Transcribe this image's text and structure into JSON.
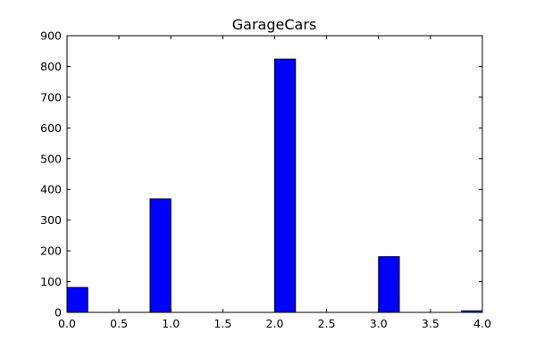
{
  "chart_data": {
    "type": "bar",
    "title": "GarageCars",
    "xlabel": "",
    "ylabel": "",
    "xlim": [
      0,
      4
    ],
    "ylim": [
      0,
      900
    ],
    "grid": false,
    "bar_color": "#0000ff",
    "bins": [
      {
        "x0": 0.0,
        "x1": 0.2,
        "value": 81
      },
      {
        "x0": 0.8,
        "x1": 1.0,
        "value": 369
      },
      {
        "x0": 2.0,
        "x1": 2.2,
        "value": 824
      },
      {
        "x0": 3.0,
        "x1": 3.2,
        "value": 181
      },
      {
        "x0": 3.8,
        "x1": 4.0,
        "value": 5
      }
    ],
    "xticks": [
      "0.0",
      "0.5",
      "1.0",
      "1.5",
      "2.0",
      "2.5",
      "3.0",
      "3.5",
      "4.0"
    ],
    "yticks": [
      "0",
      "100",
      "200",
      "300",
      "400",
      "500",
      "600",
      "700",
      "800",
      "900"
    ]
  }
}
